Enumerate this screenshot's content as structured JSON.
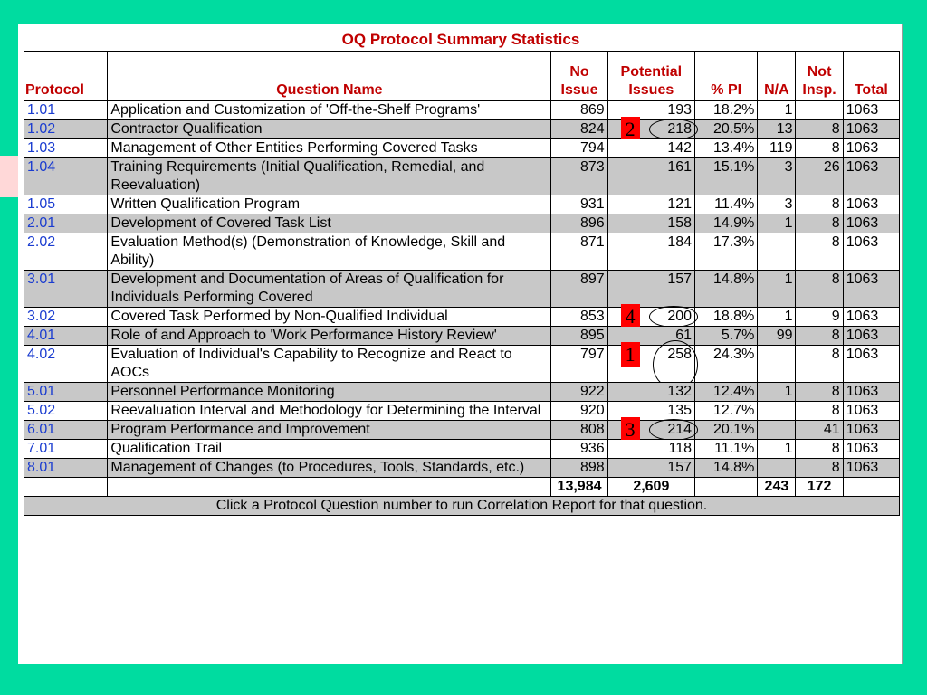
{
  "title": "OQ Protocol Summary Statistics",
  "headers": {
    "protocol": "Protocol",
    "question": "Question Name",
    "no_issue": "No Issue",
    "potential": "Potential Issues",
    "pct": "% PI",
    "na": "N/A",
    "not_insp": "Not Insp.",
    "total": "Total"
  },
  "rows": [
    {
      "protocol": "1.01",
      "question": "Application and Customization of 'Off-the-Shelf Programs'",
      "no_issue": "869",
      "potential": "193",
      "pct": "18.2%",
      "na": "1",
      "not_insp": "",
      "total": "1063"
    },
    {
      "protocol": "1.02",
      "question": "Contractor Qualification",
      "no_issue": "824",
      "potential": "218",
      "pct": "20.5%",
      "na": "13",
      "not_insp": "8",
      "total": "1063"
    },
    {
      "protocol": "1.03",
      "question": "Management of Other Entities Performing Covered Tasks",
      "no_issue": "794",
      "potential": "142",
      "pct": "13.4%",
      "na": "119",
      "not_insp": "8",
      "total": "1063"
    },
    {
      "protocol": "1.04",
      "question": "Training Requirements (Initial Qualification, Remedial, and Reevaluation)",
      "no_issue": "873",
      "potential": "161",
      "pct": "15.1%",
      "na": "3",
      "not_insp": "26",
      "total": "1063"
    },
    {
      "protocol": "1.05",
      "question": "Written Qualification Program",
      "no_issue": "931",
      "potential": "121",
      "pct": "11.4%",
      "na": "3",
      "not_insp": "8",
      "total": "1063"
    },
    {
      "protocol": "2.01",
      "question": "Development of Covered Task List",
      "no_issue": "896",
      "potential": "158",
      "pct": "14.9%",
      "na": "1",
      "not_insp": "8",
      "total": "1063"
    },
    {
      "protocol": "2.02",
      "question": "Evaluation Method(s) (Demonstration of Knowledge, Skill and Ability)",
      "no_issue": "871",
      "potential": "184",
      "pct": "17.3%",
      "na": "",
      "not_insp": "8",
      "total": "1063"
    },
    {
      "protocol": "3.01",
      "question": "Development and Documentation of Areas of Qualification for Individuals Performing Covered",
      "no_issue": "897",
      "potential": "157",
      "pct": "14.8%",
      "na": "1",
      "not_insp": "8",
      "total": "1063"
    },
    {
      "protocol": "3.02",
      "question": "Covered Task Performed by Non-Qualified Individual",
      "no_issue": "853",
      "potential": "200",
      "pct": "18.8%",
      "na": "1",
      "not_insp": "9",
      "total": "1063"
    },
    {
      "protocol": "4.01",
      "question": "Role of and Approach to 'Work Performance History Review'",
      "no_issue": "895",
      "potential": "61",
      "pct": "5.7%",
      "na": "99",
      "not_insp": "8",
      "total": "1063"
    },
    {
      "protocol": "4.02",
      "question": "Evaluation of Individual's Capability to Recognize and React to AOCs",
      "no_issue": "797",
      "potential": "258",
      "pct": "24.3%",
      "na": "",
      "not_insp": "8",
      "total": "1063"
    },
    {
      "protocol": "5.01",
      "question": "Personnel Performance Monitoring",
      "no_issue": "922",
      "potential": "132",
      "pct": "12.4%",
      "na": "1",
      "not_insp": "8",
      "total": "1063"
    },
    {
      "protocol": "5.02",
      "question": "Reevaluation Interval and Methodology for Determining the Interval",
      "no_issue": "920",
      "potential": "135",
      "pct": "12.7%",
      "na": "",
      "not_insp": "8",
      "total": "1063"
    },
    {
      "protocol": "6.01",
      "question": "Program Performance and Improvement",
      "no_issue": "808",
      "potential": "214",
      "pct": "20.1%",
      "na": "",
      "not_insp": "41",
      "total": "1063"
    },
    {
      "protocol": "7.01",
      "question": "Qualification Trail",
      "no_issue": "936",
      "potential": "118",
      "pct": "11.1%",
      "na": "1",
      "not_insp": "8",
      "total": "1063"
    },
    {
      "protocol": "8.01",
      "question": "Management of Changes (to Procedures, Tools, Standards, etc.)",
      "no_issue": "898",
      "potential": "157",
      "pct": "14.8%",
      "na": "",
      "not_insp": "8",
      "total": "1063"
    }
  ],
  "totals": {
    "no_issue": "13,984",
    "potential": "2,609",
    "na": "243",
    "not_insp": "172"
  },
  "footer": "Click a Protocol Question number to run Correlation Report for that question.",
  "annotations": [
    {
      "row": 1,
      "label": "2"
    },
    {
      "row": 8,
      "label": "4"
    },
    {
      "row": 10,
      "label": "1"
    },
    {
      "row": 13,
      "label": "3"
    }
  ],
  "colors": {
    "background": "#00dca0",
    "title": "#c00000",
    "link": "#1a3cd0",
    "row_shade": "#c8c8c8",
    "marker": "#ff0000"
  }
}
